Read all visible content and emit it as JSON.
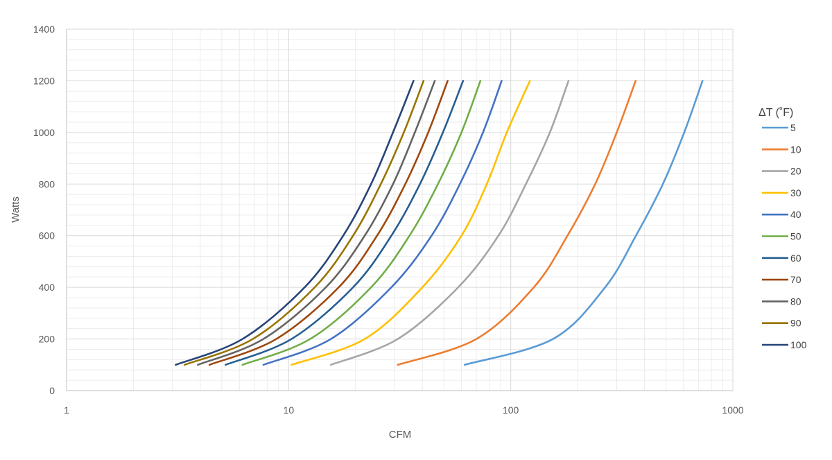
{
  "chart_data": {
    "type": "line",
    "xlabel": "CFM",
    "ylabel": "Watts",
    "x_scale": "log",
    "xlim": [
      1,
      1000
    ],
    "ylim": [
      0,
      1400
    ],
    "x_ticks": [
      "1",
      "10",
      "100",
      "1000"
    ],
    "y_ticks": [
      "0",
      "200",
      "400",
      "600",
      "800",
      "1000",
      "1200",
      "1400"
    ],
    "grid": true,
    "legend_title": "ΔT (˚F)",
    "legend_position": "right",
    "y": [
      100,
      200,
      400,
      600,
      800,
      1000,
      1200
    ],
    "series": [
      {
        "name": "5",
        "color": "#5b9bd5",
        "x": [
          62,
          155,
          266,
          366,
          484,
          604,
          730
        ]
      },
      {
        "name": "10",
        "color": "#ed7d31",
        "x": [
          31,
          70,
          127,
          180,
          240,
          300,
          365
        ]
      },
      {
        "name": "20",
        "color": "#a5a5a5",
        "x": [
          15.5,
          31,
          58,
          88,
          117,
          150,
          182
        ]
      },
      {
        "name": "30",
        "color": "#ffc000",
        "x": [
          10.3,
          22,
          40,
          60,
          78,
          96,
          122
        ]
      },
      {
        "name": "40",
        "color": "#4472c4",
        "x": [
          7.7,
          15.5,
          29,
          44,
          59,
          75,
          91
        ]
      },
      {
        "name": "50",
        "color": "#70ad47",
        "x": [
          6.2,
          12.5,
          23.5,
          35,
          47,
          60,
          73
        ]
      },
      {
        "name": "60",
        "color": "#255e91",
        "x": [
          5.2,
          10.3,
          19.5,
          29,
          39,
          49.5,
          61
        ]
      },
      {
        "name": "70",
        "color": "#9e480e",
        "x": [
          4.4,
          8.8,
          16.8,
          25,
          33.5,
          42.5,
          52
        ]
      },
      {
        "name": "80",
        "color": "#636363",
        "x": [
          3.9,
          7.7,
          14.7,
          22,
          29.5,
          37,
          45.5
        ]
      },
      {
        "name": "90",
        "color": "#997300",
        "x": [
          3.4,
          6.9,
          13.1,
          19.5,
          26,
          33,
          40.5
        ]
      },
      {
        "name": "100",
        "color": "#264478",
        "x": [
          3.1,
          6.2,
          11.8,
          17.6,
          23.5,
          29.5,
          36.5
        ]
      }
    ]
  }
}
